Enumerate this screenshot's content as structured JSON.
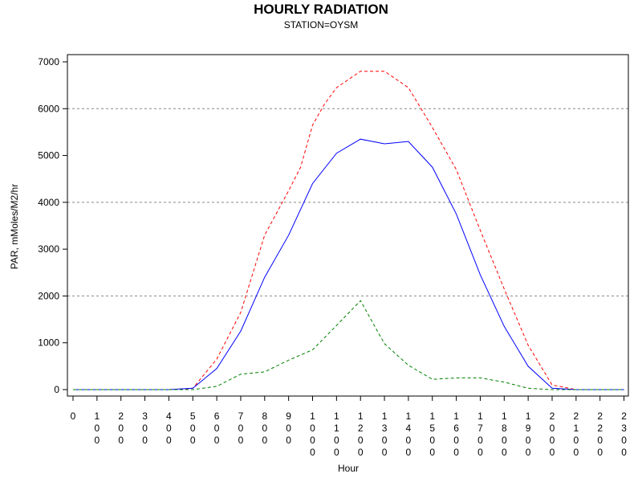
{
  "chart_data": {
    "type": "line",
    "title": "HOURLY RADIATION",
    "subtitle": "STATION=OYSM",
    "xlabel": "Hour",
    "ylabel": "PAR, mMoles/M2/hr",
    "ylim": [
      0,
      7000
    ],
    "yticks": [
      0,
      1000,
      2000,
      3000,
      4000,
      5000,
      6000,
      7000
    ],
    "grid_y": [
      2000,
      4000,
      6000
    ],
    "categories": [
      "0",
      "100",
      "200",
      "300",
      "400",
      "500",
      "600",
      "700",
      "800",
      "900",
      "1000",
      "1100",
      "1200",
      "1300",
      "1400",
      "1500",
      "1600",
      "1700",
      "1800",
      "1900",
      "2000",
      "2100",
      "2200",
      "2300"
    ],
    "series": [
      {
        "color": "#ff0000",
        "style": "dashed",
        "x": [
          0,
          100,
          200,
          300,
          400,
          500,
          600,
          700,
          800,
          900,
          950,
          1000,
          1050,
          1100,
          1200,
          1300,
          1400,
          1500,
          1600,
          1700,
          1800,
          1900,
          2000,
          2100,
          2200,
          2300
        ],
        "values": [
          0,
          0,
          0,
          0,
          0,
          30,
          650,
          1650,
          3300,
          4250,
          4750,
          5650,
          6100,
          6450,
          6800,
          6800,
          6450,
          5600,
          4700,
          3400,
          2150,
          950,
          100,
          0,
          0,
          0
        ]
      },
      {
        "color": "#0000ff",
        "style": "solid",
        "x": [
          0,
          100,
          200,
          300,
          400,
          500,
          600,
          700,
          800,
          900,
          1000,
          1100,
          1200,
          1300,
          1400,
          1500,
          1600,
          1700,
          1800,
          1900,
          2000,
          2100,
          2200,
          2300
        ],
        "values": [
          0,
          0,
          0,
          0,
          0,
          30,
          450,
          1250,
          2400,
          3300,
          4400,
          5050,
          5350,
          5250,
          5300,
          4750,
          3750,
          2450,
          1350,
          500,
          30,
          0,
          0,
          0
        ]
      },
      {
        "color": "#008000",
        "style": "dashed",
        "x": [
          0,
          100,
          200,
          300,
          400,
          500,
          600,
          700,
          800,
          900,
          1000,
          1100,
          1200,
          1300,
          1400,
          1500,
          1600,
          1700,
          1800,
          1900,
          2000,
          2100,
          2200,
          2300
        ],
        "values": [
          0,
          0,
          0,
          0,
          0,
          0,
          70,
          330,
          380,
          630,
          850,
          1370,
          1900,
          980,
          520,
          220,
          250,
          250,
          160,
          30,
          0,
          0,
          0,
          0
        ]
      }
    ]
  }
}
